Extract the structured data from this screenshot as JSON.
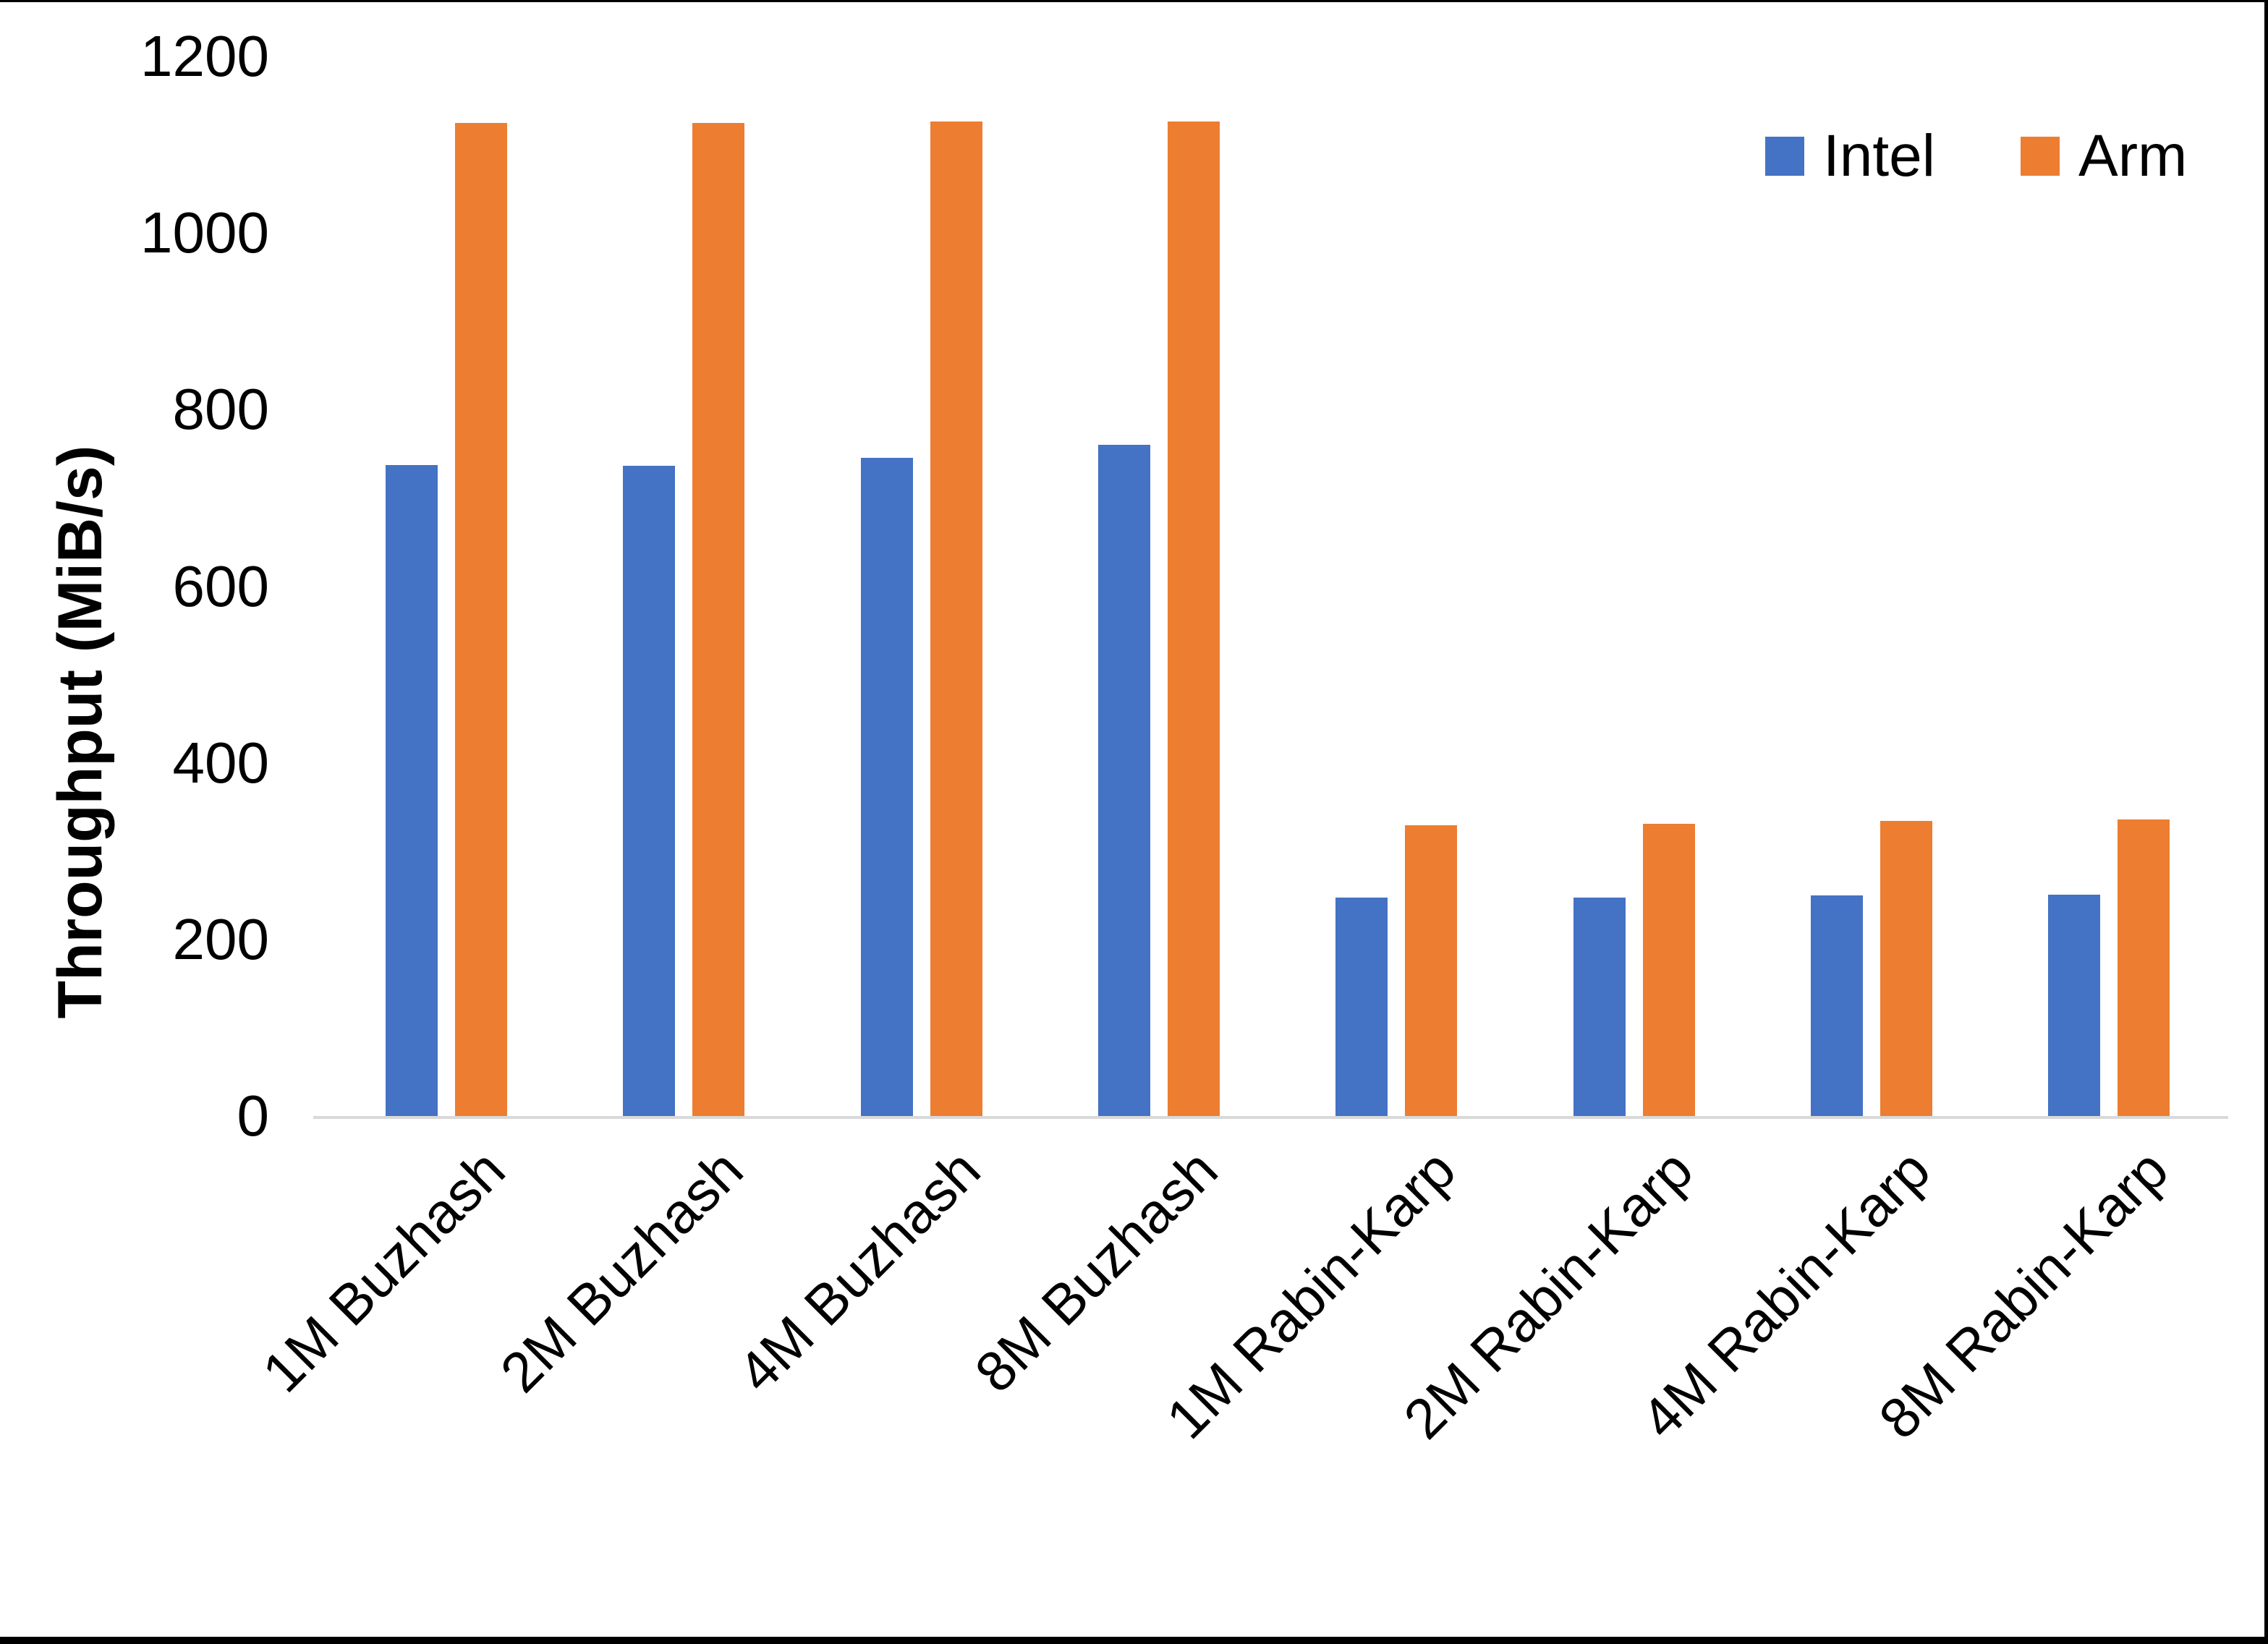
{
  "chart_data": {
    "type": "bar",
    "title": "",
    "ylabel": "Throughput (MiB/s)",
    "xlabel": "",
    "ylim": [
      0,
      1200
    ],
    "yticks": [
      0,
      200,
      400,
      600,
      800,
      1000,
      1200
    ],
    "grid": false,
    "legend": {
      "position": "top-right"
    },
    "categories": [
      "1M Buzhash",
      "2M Buzhash",
      "4M Buzhash",
      "8M Buzhash",
      "1M Rabin-Karp",
      "2M Rabin-Karp",
      "4M Rabin-Karp",
      "8M Rabin-Karp"
    ],
    "series": [
      {
        "name": "Intel",
        "color": "#4472C4",
        "values": [
          737,
          736,
          745,
          760,
          247,
          247,
          250,
          251
        ]
      },
      {
        "name": "Arm",
        "color": "#ED7D31",
        "values": [
          1125,
          1125,
          1126,
          1126,
          329,
          331,
          334,
          336
        ]
      }
    ]
  },
  "colors": {
    "background": "#FFFFFF",
    "axis_line": "#D9D9D9",
    "text": "#000000",
    "frame_border": "#000000"
  }
}
